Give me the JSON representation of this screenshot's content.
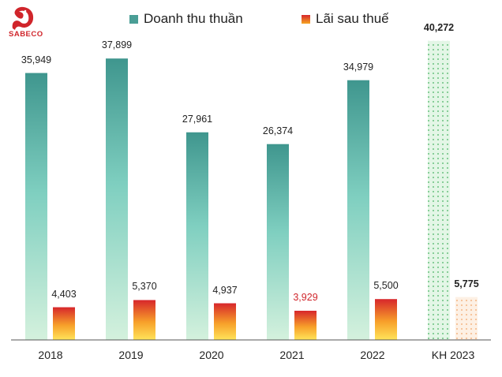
{
  "logo": {
    "text": "SABECO",
    "color": "#d0252b",
    "icon": "dragon-icon"
  },
  "legend": [
    {
      "label": "Doanh thu thuần",
      "color": "#4a9e96"
    },
    {
      "label": "Lãi sau thuế",
      "color": "#e8432a"
    }
  ],
  "chart_data": {
    "type": "bar",
    "title": "",
    "xlabel": "",
    "ylabel": "",
    "ylim": [
      0,
      41000
    ],
    "grid": false,
    "legend_position": "top",
    "categories": [
      "2018",
      "2019",
      "2020",
      "2021",
      "2022",
      "KH 2023"
    ],
    "series": [
      {
        "name": "Doanh thu thuần",
        "values": [
          35949,
          37899,
          27961,
          26374,
          34979,
          40272
        ],
        "labels": [
          "35,949",
          "37,899",
          "27,961",
          "26,374",
          "34,979",
          "40,272"
        ]
      },
      {
        "name": "Lãi sau thuế",
        "values": [
          4403,
          5370,
          4937,
          3929,
          5500,
          5775
        ],
        "labels": [
          "4,403",
          "5,370",
          "4,937",
          "3,929",
          "5,500",
          "5,775"
        ]
      }
    ],
    "highlighted_labels": {
      "series": 1,
      "index": 3,
      "color": "#d0252b"
    },
    "planned_category": "KH 2023"
  }
}
